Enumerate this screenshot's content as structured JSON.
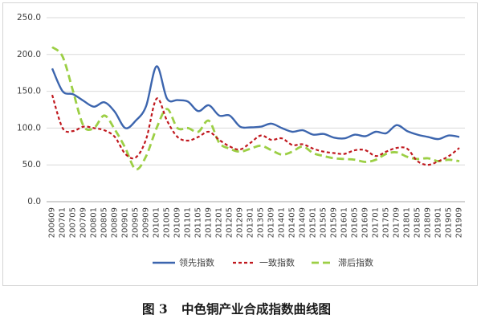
{
  "caption": {
    "label": "图 3",
    "text": "中色铜产业合成指数曲线图"
  },
  "chart_data": {
    "type": "line",
    "categories": [
      "200609",
      "200701",
      "200705",
      "200709",
      "200801",
      "200805",
      "200809",
      "200901",
      "200905",
      "200909",
      "201001",
      "201005",
      "201009",
      "201101",
      "201105",
      "201109",
      "201201",
      "201205",
      "201209",
      "201301",
      "201305",
      "201309",
      "201401",
      "201405",
      "201409",
      "201501",
      "201505",
      "201509",
      "201601",
      "201605",
      "201609",
      "201701",
      "201705",
      "201709",
      "201801",
      "201805",
      "201809",
      "201901",
      "201905",
      "201909"
    ],
    "series": [
      {
        "name": "领先指数",
        "color": "#3c65ae",
        "style": "solid",
        "values": [
          181,
          150,
          146,
          137,
          129,
          135,
          122,
          100,
          110,
          130,
          184,
          140,
          138,
          136,
          123,
          131,
          117,
          117,
          102,
          101,
          102,
          106,
          100,
          95,
          97,
          91,
          92,
          87,
          86,
          91,
          89,
          95,
          93,
          104,
          96,
          91,
          88,
          85,
          90,
          88
        ]
      },
      {
        "name": "一致指数",
        "color": "#c0181e",
        "style": "dash",
        "values": [
          145,
          100,
          96,
          102,
          100,
          97,
          88,
          65,
          60,
          85,
          140,
          110,
          88,
          83,
          88,
          95,
          84,
          75,
          71,
          80,
          90,
          84,
          86,
          77,
          78,
          72,
          68,
          66,
          65,
          70,
          70,
          62,
          68,
          73,
          72,
          55,
          50,
          55,
          62,
          73
        ]
      },
      {
        "name": "滞后指数",
        "color": "#9ccf45",
        "style": "long-dash",
        "values": [
          210,
          197,
          150,
          103,
          100,
          117,
          98,
          73,
          44,
          62,
          100,
          126,
          100,
          100,
          95,
          110,
          80,
          72,
          68,
          72,
          76,
          70,
          64,
          68,
          75,
          66,
          62,
          59,
          58,
          57,
          54,
          57,
          65,
          67,
          61,
          58,
          59,
          55,
          57,
          55
        ]
      }
    ],
    "ylim": [
      0,
      250
    ],
    "yticks": [
      0,
      50,
      100,
      150,
      200,
      250
    ],
    "ytick_labels": [
      "0.0",
      "50.0",
      "100.0",
      "150.0",
      "200.0",
      "250.0"
    ],
    "grid": "horizontal",
    "legend": "bottom"
  }
}
